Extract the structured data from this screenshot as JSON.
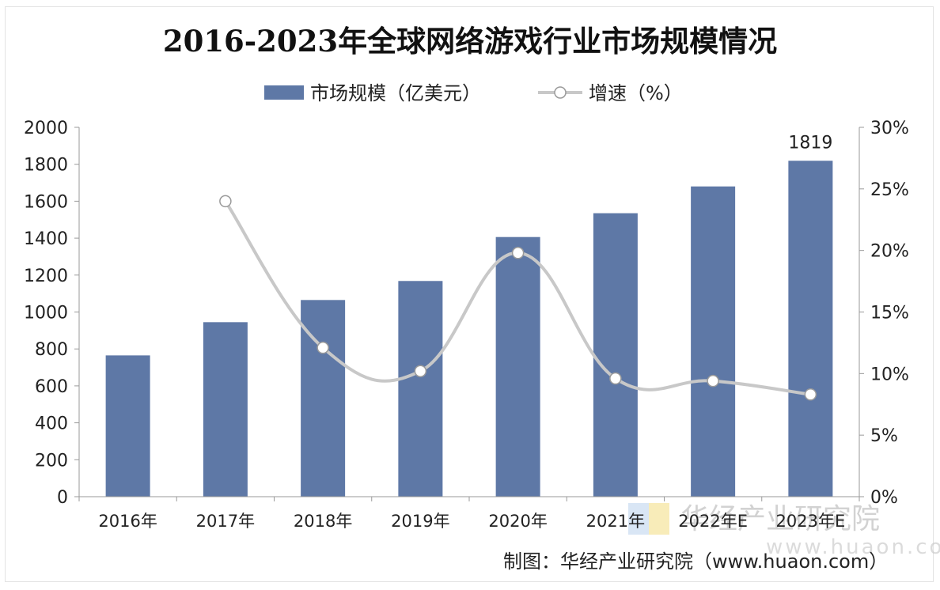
{
  "chart_data": {
    "type": "bar",
    "title": "2016-2023年全球网络游戏行业市场规模情况",
    "categories": [
      "2016年",
      "2017年",
      "2018年",
      "2019年",
      "2020年",
      "2021年",
      "2022年E",
      "2023年E"
    ],
    "series": [
      {
        "name": "市场规模（亿美元）",
        "type": "bar",
        "axis": "left",
        "values": [
          765,
          945,
          1065,
          1168,
          1406,
          1535,
          1680,
          1819
        ],
        "color": "#5e78a6"
      },
      {
        "name": "增速（%）",
        "type": "line",
        "axis": "right",
        "smooth": true,
        "values": [
          null,
          24.0,
          12.1,
          10.2,
          19.8,
          9.6,
          9.4,
          8.3
        ],
        "color": "#c8c8c8"
      }
    ],
    "data_labels": [
      {
        "series": 0,
        "index": 7,
        "text": "1819"
      }
    ],
    "yleft": {
      "ylim": [
        0,
        2000
      ],
      "ticks": [
        "0",
        "200",
        "400",
        "600",
        "800",
        "1000",
        "1200",
        "1400",
        "1600",
        "1800",
        "2000"
      ]
    },
    "yright": {
      "ylim": [
        0,
        30
      ],
      "ticks": [
        "0%",
        "5%",
        "10%",
        "15%",
        "20%",
        "25%",
        "30%"
      ]
    },
    "legend_position": "top-center",
    "grid": false
  },
  "watermark": {
    "text": "华经产业研究院",
    "url": "www.huaon.com"
  },
  "source": "制图：华经产业研究院（www.huaon.com）"
}
